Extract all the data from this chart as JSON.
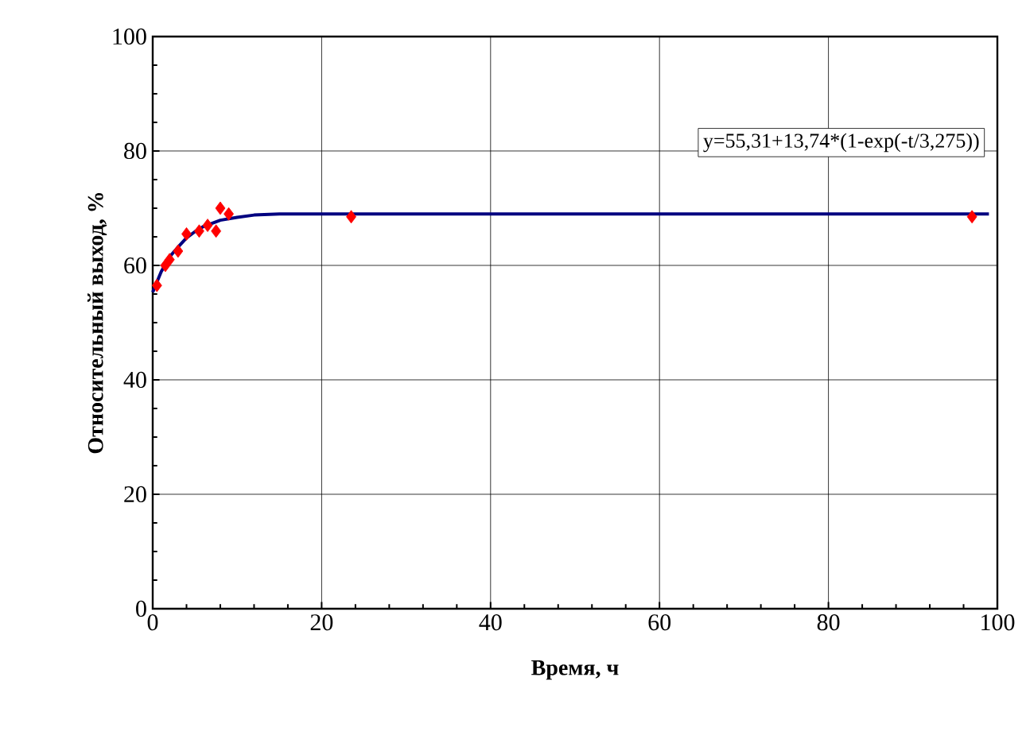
{
  "chart_data": {
    "type": "scatter",
    "xlabel": "Время, ч",
    "ylabel": "Относительный выход, %",
    "annotations": [
      "y=55,31+13,74*(1-exp(-t/3,275))"
    ],
    "xlim": [
      0,
      100
    ],
    "ylim": [
      0,
      100
    ],
    "xticks": [
      0,
      20,
      40,
      60,
      80,
      100
    ],
    "yticks": [
      0,
      20,
      40,
      60,
      80,
      100
    ],
    "grid": true,
    "series": [
      {
        "marker": "diamond",
        "color": "#ff0000",
        "x": [
          0.5,
          1.5,
          2,
          3,
          4,
          5.5,
          6.5,
          7.5,
          8,
          9,
          23.5,
          97
        ],
        "values": [
          56.5,
          60,
          61,
          62.5,
          65.5,
          66,
          67,
          66,
          70,
          69,
          68.5,
          68.5
        ]
      },
      {
        "type": "line",
        "marker": "none",
        "color": "#000080",
        "x": [
          0,
          1,
          2,
          3,
          4,
          5,
          6,
          8,
          10,
          12,
          15,
          20,
          40,
          60,
          80,
          99
        ],
        "values": [
          55.3,
          58.9,
          61.5,
          63.2,
          64.8,
          65.9,
          66.8,
          67.9,
          68.4,
          68.8,
          69,
          69,
          69,
          69,
          69,
          69
        ]
      }
    ]
  }
}
